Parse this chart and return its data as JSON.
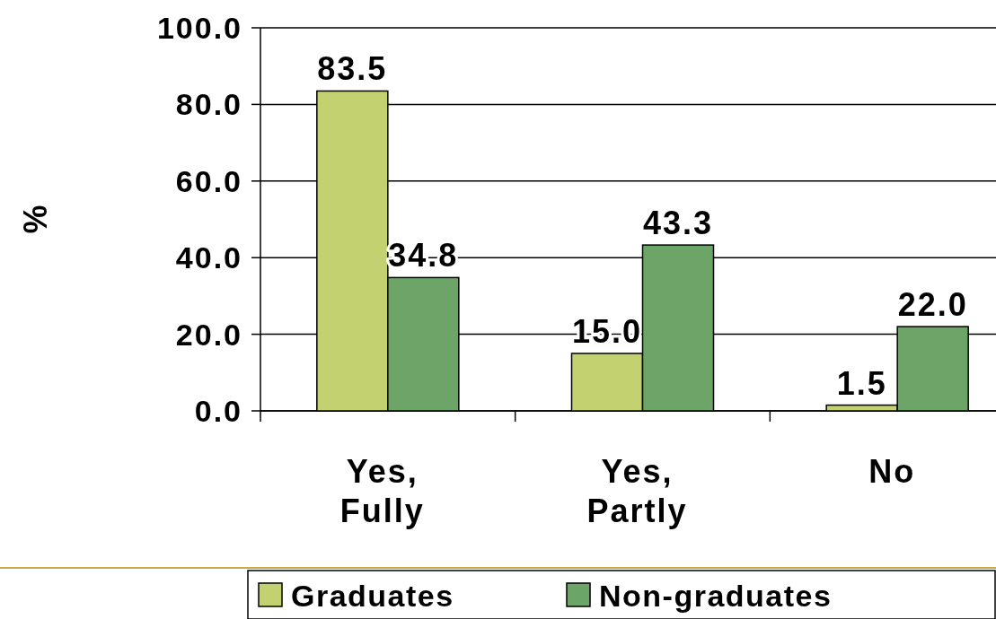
{
  "chart_data": {
    "type": "bar",
    "ylabel": "%",
    "categories": [
      "Yes,\nFully",
      "Yes,\nPartly",
      "No"
    ],
    "series": [
      {
        "name": "Graduates",
        "color": "#c4d170",
        "values": [
          83.5,
          15.0,
          1.5
        ],
        "value_labels": [
          "83.5",
          "15.0",
          "1.5"
        ]
      },
      {
        "name": "Non-graduates",
        "color": "#6da468",
        "values": [
          34.8,
          43.3,
          22.0
        ],
        "value_labels": [
          "34.8",
          "43.3",
          "22.0"
        ]
      }
    ],
    "ylim": [
      0,
      100
    ],
    "yticks": [
      {
        "value": 0,
        "label": "0.0"
      },
      {
        "value": 20,
        "label": "20.0"
      },
      {
        "value": 40,
        "label": "40.0"
      },
      {
        "value": 60,
        "label": "60.0"
      },
      {
        "value": 80,
        "label": "80.0"
      },
      {
        "value": 100,
        "label": "100.0"
      }
    ],
    "grid": "y",
    "legend": "bottom"
  }
}
